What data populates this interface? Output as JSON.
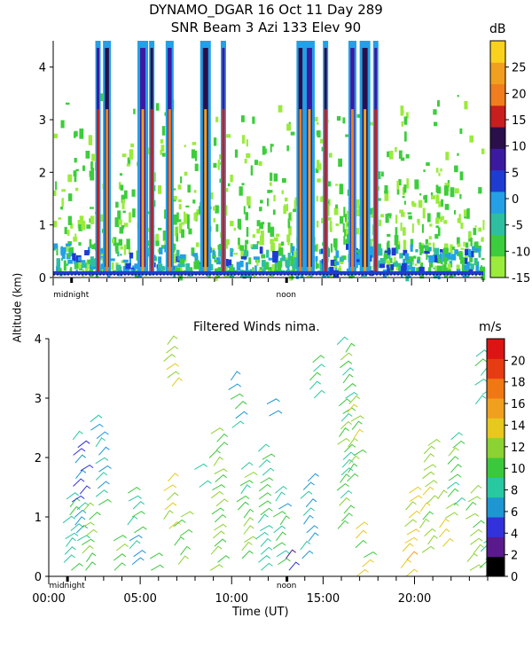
{
  "header": {
    "title_line1": "DYNAMO_DGAR  16 Oct 11 Day 289",
    "title_line2": "SNR Beam 3 Azi 133 Elev 90"
  },
  "colors": {
    "snr_scale": [
      "#9aeb3c",
      "#3ccd3c",
      "#2dbfa0",
      "#23a0e6",
      "#1e3cd2",
      "#3c1aa0",
      "#2a0f4a",
      "#c81e1e",
      "#f07d1e",
      "#f0a01e",
      "#fad21e"
    ],
    "wind_scale": [
      "#000000",
      "#5a1a8c",
      "#3232dc",
      "#1e96d2",
      "#28c8a0",
      "#3cc83c",
      "#8cd232",
      "#e6c81e",
      "#f0a01e",
      "#f07814",
      "#e63c14",
      "#dc1414"
    ]
  },
  "chart_data": [
    {
      "type": "heatmap",
      "title": "SNR Beam 3 Azi 133 Elev 90",
      "ylabel": "Altitude (km)",
      "x_unit": "UT hours",
      "xlim": [
        0,
        24
      ],
      "ylim": [
        0,
        4.5
      ],
      "yticks": [
        0,
        1,
        2,
        3,
        4
      ],
      "x_markers": [
        {
          "label": "midnight",
          "x": 1
        },
        {
          "label": "noon",
          "x": 13
        }
      ],
      "colorbar": {
        "unit": "dB",
        "range": [
          -15,
          30
        ],
        "tick_labels": [
          "25",
          "20",
          "15",
          "10",
          "5",
          "0",
          "-5",
          "-10",
          "-15"
        ],
        "tick_values": [
          25,
          20,
          15,
          10,
          5,
          0,
          -5,
          -10,
          -15
        ]
      },
      "strong_columns_hours": [
        2.5,
        3.0,
        5.0,
        5.5,
        6.5,
        8.5,
        9.5,
        13.8,
        14.3,
        15.2,
        16.7,
        17.4,
        18.0
      ]
    },
    {
      "type": "scatter",
      "title": "Filtered Winds nima.",
      "xlabel": "Time (UT)",
      "ylabel": "Altitude (km)",
      "xlim": [
        0,
        24
      ],
      "ylim": [
        0,
        4
      ],
      "xticks": [
        0,
        5,
        10,
        15,
        20
      ],
      "xtick_labels": [
        "00:00",
        "05:00",
        "10:00",
        "15:00",
        "20:00"
      ],
      "yticks": [
        0,
        1,
        2,
        3,
        4
      ],
      "x_markers": [
        {
          "label": "midnight",
          "x": 1
        },
        {
          "label": "noon",
          "x": 13
        }
      ],
      "colorbar": {
        "unit": "m/s",
        "range": [
          0,
          22
        ],
        "tick_labels": [
          "20",
          "18",
          "16",
          "14",
          "12",
          "10",
          "8",
          "6",
          "4",
          "2",
          "0"
        ],
        "tick_values": [
          20,
          18,
          16,
          14,
          12,
          10,
          8,
          6,
          4,
          2,
          0
        ]
      },
      "wind_clusters": [
        {
          "x": 1.0,
          "alt_range": [
            0.1,
            1.3
          ],
          "speed": 10
        },
        {
          "x": 1.5,
          "alt_range": [
            0.6,
            2.3
          ],
          "speed": 7
        },
        {
          "x": 2.0,
          "alt_range": [
            0.1,
            1.1
          ],
          "speed": 12
        },
        {
          "x": 2.5,
          "alt_range": [
            1.2,
            2.6
          ],
          "speed": 9
        },
        {
          "x": 3.5,
          "alt_range": [
            0.1,
            0.6
          ],
          "speed": 11
        },
        {
          "x": 4.5,
          "alt_range": [
            0.2,
            1.4
          ],
          "speed": 9
        },
        {
          "x": 5.5,
          "alt_range": [
            0.1,
            0.3
          ],
          "speed": 10
        },
        {
          "x": 6.5,
          "alt_range": [
            0.8,
            1.6
          ],
          "speed": 14
        },
        {
          "x": 6.5,
          "alt_range": [
            3.2,
            3.9
          ],
          "speed": 14
        },
        {
          "x": 7.0,
          "alt_range": [
            0.2,
            1.0
          ],
          "speed": 12
        },
        {
          "x": 8.0,
          "alt_range": [
            1.5,
            1.8
          ],
          "speed": 10
        },
        {
          "x": 9.0,
          "alt_range": [
            0.1,
            2.4
          ],
          "speed": 12
        },
        {
          "x": 10.0,
          "alt_range": [
            2.5,
            3.3
          ],
          "speed": 9
        },
        {
          "x": 10.5,
          "alt_range": [
            0.3,
            1.8
          ],
          "speed": 11
        },
        {
          "x": 11.5,
          "alt_range": [
            0.1,
            2.1
          ],
          "speed": 10
        },
        {
          "x": 12.0,
          "alt_range": [
            2.7,
            2.9
          ],
          "speed": 7
        },
        {
          "x": 12.5,
          "alt_range": [
            0.2,
            1.4
          ],
          "speed": 9
        },
        {
          "x": 13.0,
          "alt_range": [
            0.1,
            0.3
          ],
          "speed": 3
        },
        {
          "x": 14.0,
          "alt_range": [
            0.3,
            1.6
          ],
          "speed": 8
        },
        {
          "x": 14.5,
          "alt_range": [
            3.0,
            3.6
          ],
          "speed": 10
        },
        {
          "x": 16.0,
          "alt_range": [
            0.8,
            3.9
          ],
          "speed": 11
        },
        {
          "x": 16.5,
          "alt_range": [
            1.6,
            2.9
          ],
          "speed": 13
        },
        {
          "x": 17.0,
          "alt_range": [
            0.0,
            0.8
          ],
          "speed": 13
        },
        {
          "x": 19.5,
          "alt_range": [
            0.0,
            1.4
          ],
          "speed": 15
        },
        {
          "x": 20.5,
          "alt_range": [
            0.4,
            2.2
          ],
          "speed": 13
        },
        {
          "x": 21.5,
          "alt_range": [
            0.5,
            1.3
          ],
          "speed": 14
        },
        {
          "x": 22.0,
          "alt_range": [
            1.2,
            2.3
          ],
          "speed": 11
        },
        {
          "x": 23.0,
          "alt_range": [
            0.1,
            1.4
          ],
          "speed": 12
        },
        {
          "x": 23.5,
          "alt_range": [
            2.9,
            3.7
          ],
          "speed": 9
        },
        {
          "x": 23.8,
          "alt_range": [
            0.0,
            0.7
          ],
          "speed": 10
        }
      ]
    }
  ]
}
